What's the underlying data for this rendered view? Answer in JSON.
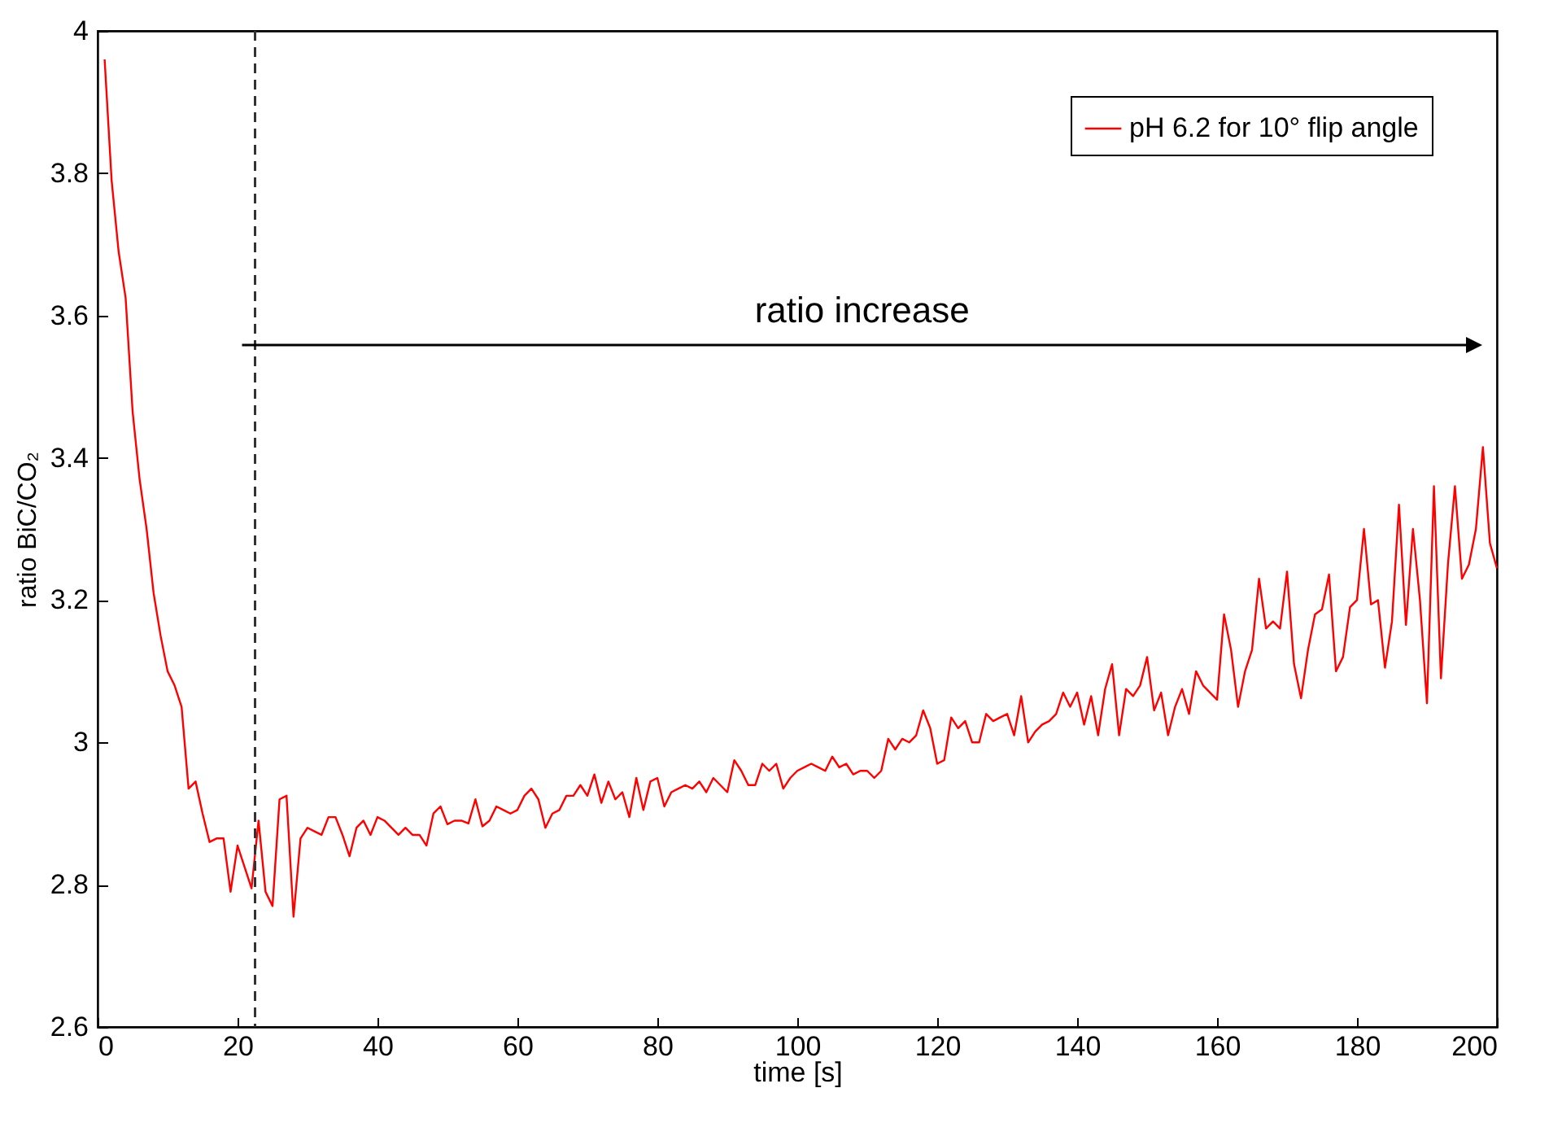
{
  "chart_data": {
    "type": "line",
    "xlabel": "time [s]",
    "ylabel": "ratio BiC/CO₂",
    "x": [
      1,
      2,
      3,
      4,
      5,
      6,
      7,
      8,
      9,
      10,
      11,
      12,
      13,
      14,
      15,
      16,
      17,
      18,
      19,
      20,
      21,
      22,
      23,
      24,
      25,
      26,
      27,
      28,
      29,
      30,
      31,
      32,
      33,
      34,
      35,
      36,
      37,
      38,
      39,
      40,
      41,
      42,
      43,
      44,
      45,
      46,
      47,
      48,
      49,
      50,
      51,
      52,
      53,
      54,
      55,
      56,
      57,
      58,
      59,
      60,
      61,
      62,
      63,
      64,
      65,
      66,
      67,
      68,
      69,
      70,
      71,
      72,
      73,
      74,
      75,
      76,
      77,
      78,
      79,
      80,
      81,
      82,
      83,
      84,
      85,
      86,
      87,
      88,
      89,
      90,
      91,
      92,
      93,
      94,
      95,
      96,
      97,
      98,
      99,
      100,
      101,
      102,
      103,
      104,
      105,
      106,
      107,
      108,
      109,
      110,
      111,
      112,
      113,
      114,
      115,
      116,
      117,
      118,
      119,
      120,
      121,
      122,
      123,
      124,
      125,
      126,
      127,
      128,
      129,
      130,
      131,
      132,
      133,
      134,
      135,
      136,
      137,
      138,
      139,
      140,
      141,
      142,
      143,
      144,
      145,
      146,
      147,
      148,
      149,
      150,
      151,
      152,
      153,
      154,
      155,
      156,
      157,
      158,
      159,
      160,
      161,
      162,
      163,
      164,
      165,
      166,
      167,
      168,
      169,
      170,
      171,
      172,
      173,
      174,
      175,
      176,
      177,
      178,
      179,
      180,
      181,
      182,
      183,
      184,
      185,
      186,
      187,
      188,
      189,
      190,
      191,
      192,
      193,
      194,
      195,
      196,
      197,
      198,
      199,
      200
    ],
    "series": [
      {
        "name": "pH 6.2 for 10° flip angle",
        "color": "#ff0000",
        "values": [
          3.96,
          3.79,
          3.69,
          3.625,
          3.465,
          3.37,
          3.3,
          3.21,
          3.15,
          3.1,
          3.08,
          3.05,
          2.935,
          2.945,
          2.9,
          2.86,
          2.865,
          2.865,
          2.79,
          2.855,
          2.825,
          2.795,
          2.89,
          2.79,
          2.77,
          2.92,
          2.925,
          2.755,
          2.865,
          2.88,
          2.875,
          2.87,
          2.895,
          2.895,
          2.87,
          2.84,
          2.88,
          2.89,
          2.87,
          2.895,
          2.89,
          2.88,
          2.87,
          2.88,
          2.87,
          2.87,
          2.855,
          2.9,
          2.91,
          2.885,
          2.89,
          2.89,
          2.886,
          2.92,
          2.882,
          2.89,
          2.91,
          2.905,
          2.9,
          2.905,
          2.925,
          2.935,
          2.92,
          2.88,
          2.9,
          2.905,
          2.925,
          2.925,
          2.94,
          2.925,
          2.955,
          2.915,
          2.945,
          2.92,
          2.93,
          2.895,
          2.95,
          2.905,
          2.945,
          2.95,
          2.91,
          2.93,
          2.935,
          2.94,
          2.935,
          2.945,
          2.93,
          2.95,
          2.94,
          2.93,
          2.975,
          2.96,
          2.94,
          2.94,
          2.97,
          2.96,
          2.97,
          2.935,
          2.95,
          2.96,
          2.965,
          2.97,
          2.965,
          2.96,
          2.98,
          2.965,
          2.97,
          2.955,
          2.96,
          2.96,
          2.95,
          2.96,
          3.005,
          2.99,
          3.005,
          3.0,
          3.01,
          3.045,
          3.02,
          2.97,
          2.975,
          3.035,
          3.02,
          3.03,
          3.0,
          3.0,
          3.04,
          3.03,
          3.035,
          3.04,
          3.01,
          3.065,
          3.0,
          3.015,
          3.025,
          3.03,
          3.04,
          3.07,
          3.05,
          3.07,
          3.025,
          3.065,
          3.01,
          3.075,
          3.11,
          3.01,
          3.075,
          3.065,
          3.08,
          3.12,
          3.045,
          3.07,
          3.01,
          3.05,
          3.075,
          3.04,
          3.1,
          3.08,
          3.07,
          3.06,
          3.18,
          3.13,
          3.05,
          3.1,
          3.13,
          3.23,
          3.16,
          3.17,
          3.16,
          3.24,
          3.11,
          3.062,
          3.13,
          3.18,
          3.187,
          3.236,
          3.1,
          3.12,
          3.19,
          3.2,
          3.3,
          3.194,
          3.2,
          3.105,
          3.17,
          3.334,
          3.165,
          3.3,
          3.2,
          3.055,
          3.36,
          3.09,
          3.25,
          3.36,
          3.23,
          3.25,
          3.3,
          3.415,
          3.28,
          3.245
        ]
      }
    ],
    "xlim": [
      0,
      200
    ],
    "xticks": [
      0,
      20,
      40,
      60,
      80,
      100,
      120,
      140,
      160,
      180,
      200
    ],
    "ylim": [
      2.6,
      4
    ],
    "yticks": [
      2.6,
      2.8,
      3,
      3.2,
      3.4,
      3.6,
      3.8,
      4
    ],
    "grid": false,
    "legend": "top right",
    "marker": "none",
    "line_style": "solid",
    "ref_lines": [
      {
        "axis": "x",
        "value": 22.5,
        "color": "#333333",
        "line_style": "dashed"
      }
    ],
    "annotations": [
      "ratio increase"
    ]
  }
}
